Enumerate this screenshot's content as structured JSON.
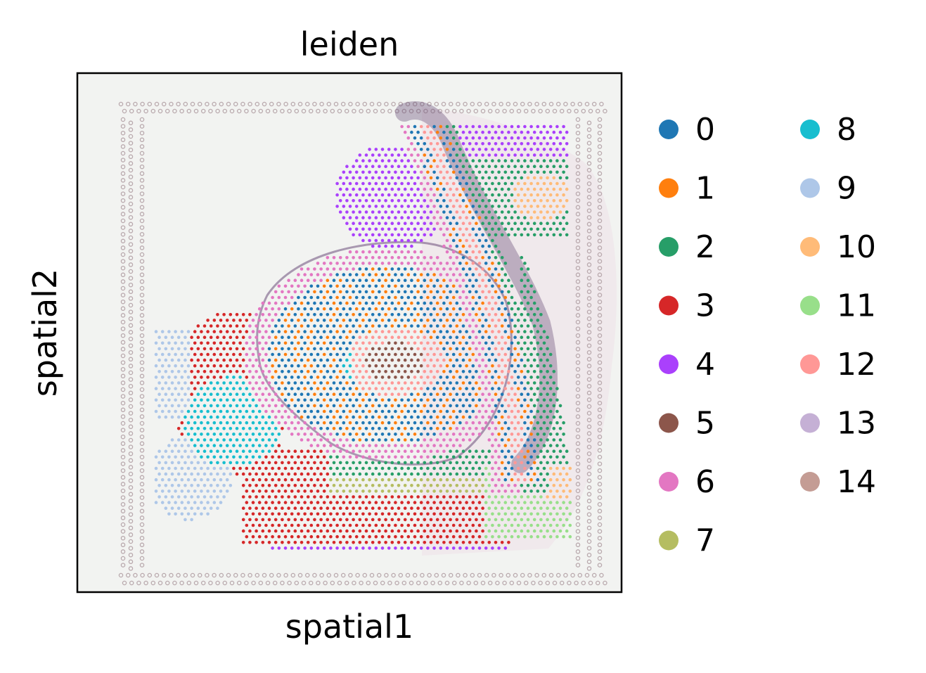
{
  "chart_data": {
    "type": "scatter",
    "title": "leiden",
    "xlabel": "spatial1",
    "ylabel": "spatial2",
    "grid": false,
    "xticks": [],
    "yticks": [],
    "background": "tissue histology image (H&E) with fiducial frame",
    "legend": {
      "placement": "right-outside",
      "columns": 2,
      "entries": [
        {
          "label": "0",
          "color": "#1f77b4"
        },
        {
          "label": "1",
          "color": "#ff7f0e"
        },
        {
          "label": "2",
          "color": "#279e68"
        },
        {
          "label": "3",
          "color": "#d62728"
        },
        {
          "label": "4",
          "color": "#aa40fc"
        },
        {
          "label": "5",
          "color": "#8c564b"
        },
        {
          "label": "6",
          "color": "#e377c2"
        },
        {
          "label": "7",
          "color": "#b5bd61"
        },
        {
          "label": "8",
          "color": "#17becf"
        },
        {
          "label": "9",
          "color": "#aec7e8"
        },
        {
          "label": "10",
          "color": "#ffbb78"
        },
        {
          "label": "11",
          "color": "#98df8a"
        },
        {
          "label": "12",
          "color": "#ff9896"
        },
        {
          "label": "13",
          "color": "#c5b0d5"
        },
        {
          "label": "14",
          "color": "#c49c94"
        }
      ]
    }
  }
}
